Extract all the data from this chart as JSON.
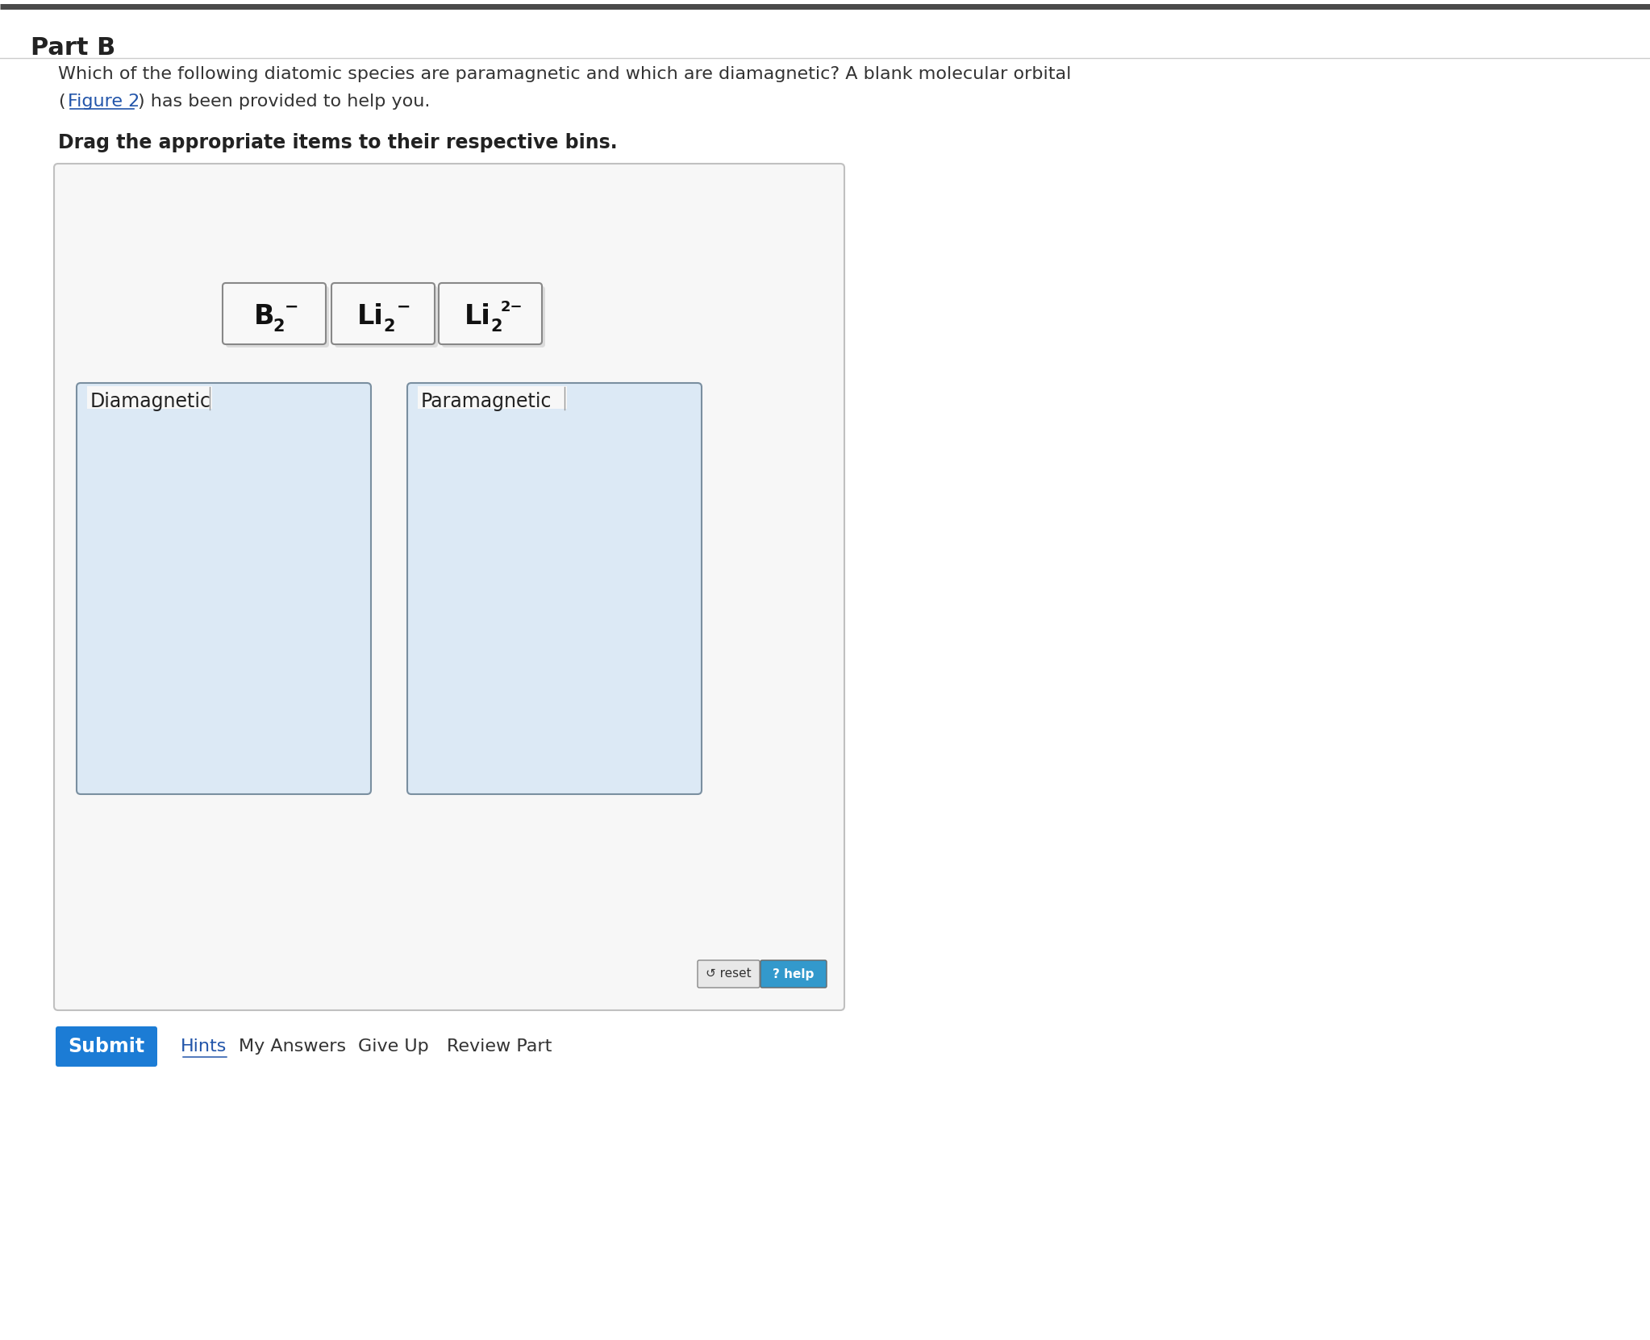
{
  "bg_color": "#f5f5f5",
  "page_bg": "#ffffff",
  "part_b_text": "Part B",
  "description_line1": "Which of the following diatomic species are paramagnetic and which are diamagnetic? A blank molecular orbital",
  "description_line2_pre": "(",
  "figure2_text": "Figure 2",
  "description_line2_post": ") has been provided to help you.",
  "drag_instruction": "Drag the appropriate items to their respective bins.",
  "bin1_label": "Diamagnetic",
  "bin2_label": "Paramagnetic",
  "submit_btn_color": "#1c7cd5",
  "submit_text": "Submit",
  "hints_text": "Hints",
  "my_answers_text": "My Answers",
  "give_up_text": "Give Up",
  "review_part_text": "Review Part",
  "reset_text": "reset",
  "help_text": "? help",
  "outer_box_bg": "#f7f7f7",
  "outer_box_border": "#c0c0c0",
  "bin_bg": "#dce9f5",
  "bin_border": "#7a8fa0",
  "item_bg": "#f8f8f8",
  "item_border": "#888888",
  "top_border_color": "#4a4a4a",
  "link_color": "#2255aa",
  "shadow_color": "#aaaaaa",
  "reset_bg": "#e8e8e8",
  "help_bg": "#3399cc"
}
